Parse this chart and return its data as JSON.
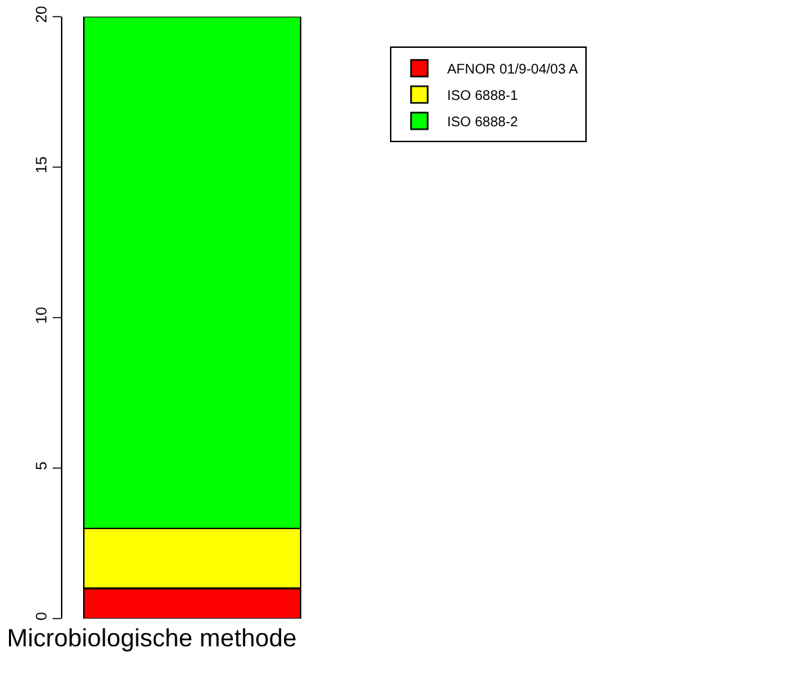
{
  "chart_data": {
    "type": "bar",
    "stacked": true,
    "categories": [
      null
    ],
    "xlabel": "Microbiologische methode",
    "series": [
      {
        "name": "AFNOR 01/9-04/03 A",
        "color": "#ff0000",
        "values": [
          1
        ]
      },
      {
        "name": "ISO 6888-1",
        "color": "#ffff00",
        "values": [
          2
        ]
      },
      {
        "name": "ISO 6888-2",
        "color": "#00ff00",
        "values": [
          17
        ]
      }
    ],
    "ylim": [
      0,
      20
    ],
    "yticks": [
      0,
      5,
      10,
      15,
      20
    ],
    "legend": "top right"
  }
}
